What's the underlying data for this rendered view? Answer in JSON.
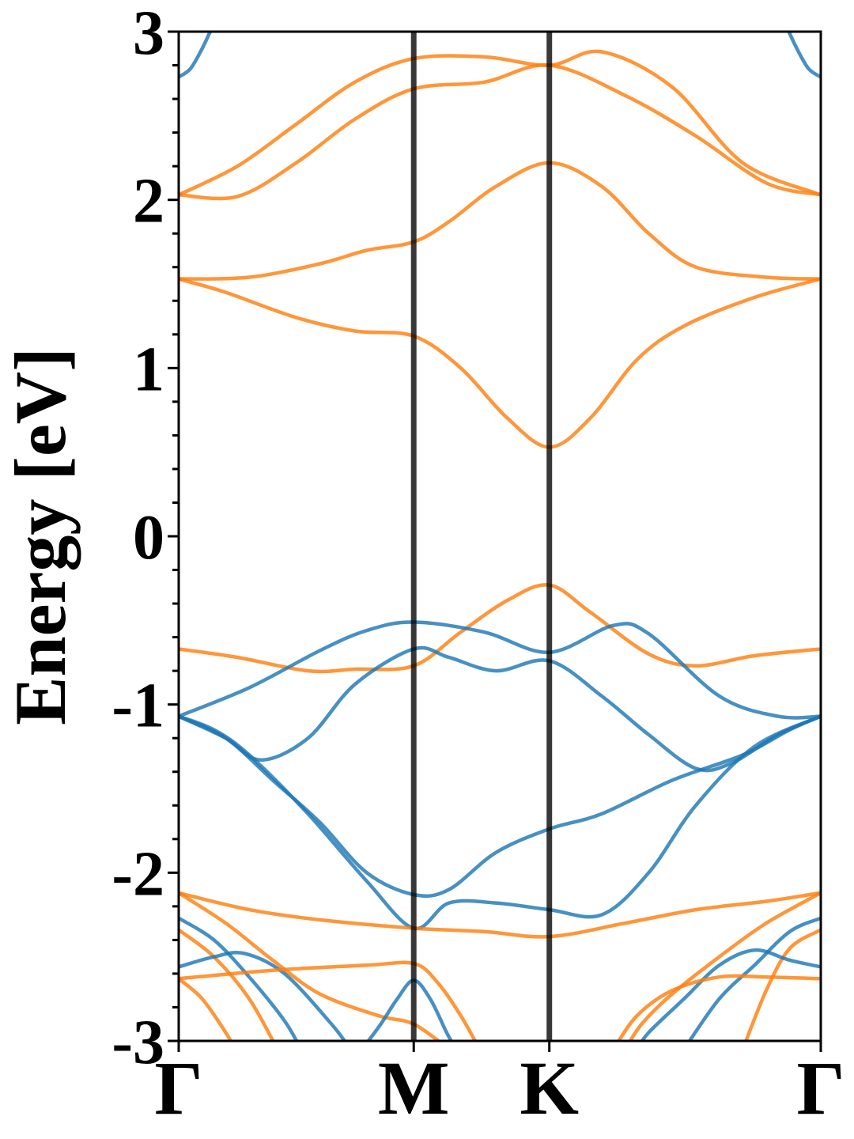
{
  "chart_data": {
    "type": "line",
    "title": "",
    "ylabel": "Energy [eV]",
    "xlabel": "",
    "ylim": [
      -3,
      3
    ],
    "grid": false,
    "legend": "none",
    "yticks": [
      "3",
      "2",
      "1",
      "0",
      "-1",
      "-2",
      "-3"
    ],
    "ytick_values": [
      3,
      2,
      1,
      0,
      -1,
      -2,
      -3
    ],
    "kpath": {
      "labels": [
        "Γ",
        "M",
        "K",
        "Γ"
      ],
      "positions": [
        0,
        1,
        1.577,
        2.732
      ]
    },
    "colors": {
      "spin_up": "#1f77b4",
      "spin_down": "#ff7f0e",
      "kline": "#000000"
    },
    "series": [
      {
        "color_key": "spin_down",
        "points": [
          [
            0,
            2.03
          ],
          [
            0.25,
            2.02
          ],
          [
            0.5,
            2.22
          ],
          [
            0.75,
            2.48
          ],
          [
            1,
            2.66
          ],
          [
            1.3,
            2.7
          ],
          [
            1.577,
            2.8
          ],
          [
            1.9,
            2.62
          ],
          [
            2.2,
            2.38
          ],
          [
            2.5,
            2.1
          ],
          [
            2.732,
            2.03
          ]
        ]
      },
      {
        "color_key": "spin_down",
        "points": [
          [
            0,
            2.03
          ],
          [
            0.25,
            2.2
          ],
          [
            0.5,
            2.45
          ],
          [
            0.75,
            2.7
          ],
          [
            1,
            2.84
          ],
          [
            1.3,
            2.85
          ],
          [
            1.577,
            2.8
          ],
          [
            1.8,
            2.88
          ],
          [
            2.1,
            2.67
          ],
          [
            2.4,
            2.22
          ],
          [
            2.732,
            2.03
          ]
        ]
      },
      {
        "color_key": "spin_down",
        "points": [
          [
            0,
            1.53
          ],
          [
            0.3,
            1.54
          ],
          [
            0.6,
            1.62
          ],
          [
            0.8,
            1.7
          ],
          [
            1,
            1.75
          ],
          [
            1.15,
            1.87
          ],
          [
            1.35,
            2.08
          ],
          [
            1.577,
            2.22
          ],
          [
            1.8,
            2.08
          ],
          [
            2.0,
            1.8
          ],
          [
            2.2,
            1.6
          ],
          [
            2.5,
            1.54
          ],
          [
            2.732,
            1.53
          ]
        ]
      },
      {
        "color_key": "spin_down",
        "points": [
          [
            0,
            1.53
          ],
          [
            0.2,
            1.45
          ],
          [
            0.5,
            1.3
          ],
          [
            0.75,
            1.22
          ],
          [
            1,
            1.19
          ],
          [
            1.2,
            1.0
          ],
          [
            1.4,
            0.7
          ],
          [
            1.577,
            0.53
          ],
          [
            1.75,
            0.7
          ],
          [
            1.95,
            1.05
          ],
          [
            2.15,
            1.25
          ],
          [
            2.45,
            1.42
          ],
          [
            2.732,
            1.53
          ]
        ]
      },
      {
        "color_key": "spin_down",
        "points": [
          [
            0,
            -0.67
          ],
          [
            0.25,
            -0.72
          ],
          [
            0.55,
            -0.8
          ],
          [
            0.75,
            -0.79
          ],
          [
            1,
            -0.77
          ],
          [
            1.2,
            -0.57
          ],
          [
            1.4,
            -0.38
          ],
          [
            1.577,
            -0.29
          ],
          [
            1.75,
            -0.45
          ],
          [
            2.0,
            -0.7
          ],
          [
            2.2,
            -0.77
          ],
          [
            2.45,
            -0.71
          ],
          [
            2.732,
            -0.67
          ]
        ]
      },
      {
        "color_key": "spin_up",
        "points": [
          [
            0,
            -1.07
          ],
          [
            0.3,
            -0.9
          ],
          [
            0.6,
            -0.68
          ],
          [
            0.8,
            -0.56
          ],
          [
            1,
            -0.51
          ],
          [
            1.3,
            -0.57
          ],
          [
            1.577,
            -0.69
          ],
          [
            1.85,
            -0.53
          ],
          [
            2.0,
            -0.58
          ],
          [
            2.3,
            -0.95
          ],
          [
            2.55,
            -1.07
          ],
          [
            2.732,
            -1.07
          ]
        ]
      },
      {
        "color_key": "spin_up",
        "points": [
          [
            0,
            -1.07
          ],
          [
            0.2,
            -1.2
          ],
          [
            0.35,
            -1.33
          ],
          [
            0.55,
            -1.2
          ],
          [
            0.75,
            -0.88
          ],
          [
            1,
            -0.67
          ],
          [
            1.15,
            -0.72
          ],
          [
            1.35,
            -0.8
          ],
          [
            1.577,
            -0.74
          ],
          [
            1.8,
            -0.95
          ],
          [
            2.0,
            -1.18
          ],
          [
            2.2,
            -1.38
          ],
          [
            2.35,
            -1.35
          ],
          [
            2.55,
            -1.18
          ],
          [
            2.732,
            -1.07
          ]
        ]
      },
      {
        "color_key": "spin_up",
        "points": [
          [
            0,
            -1.07
          ],
          [
            0.2,
            -1.2
          ],
          [
            0.4,
            -1.45
          ],
          [
            0.6,
            -1.7
          ],
          [
            0.8,
            -2.0
          ],
          [
            1,
            -2.13
          ],
          [
            1.15,
            -2.1
          ],
          [
            1.35,
            -1.88
          ],
          [
            1.577,
            -1.74
          ],
          [
            1.8,
            -1.65
          ],
          [
            2.1,
            -1.45
          ],
          [
            2.4,
            -1.3
          ],
          [
            2.6,
            -1.15
          ],
          [
            2.732,
            -1.07
          ]
        ]
      },
      {
        "color_key": "spin_up",
        "points": [
          [
            0,
            -1.07
          ],
          [
            0.15,
            -1.15
          ],
          [
            0.3,
            -1.3
          ],
          [
            0.55,
            -1.65
          ],
          [
            0.8,
            -2.05
          ],
          [
            1,
            -2.33
          ],
          [
            1.15,
            -2.18
          ],
          [
            1.35,
            -2.18
          ],
          [
            1.577,
            -2.22
          ],
          [
            1.8,
            -2.25
          ],
          [
            2.0,
            -2.0
          ],
          [
            2.2,
            -1.6
          ],
          [
            2.45,
            -1.25
          ],
          [
            2.732,
            -1.07
          ]
        ]
      },
      {
        "color_key": "spin_down",
        "points": [
          [
            0,
            -2.12
          ],
          [
            0.3,
            -2.22
          ],
          [
            0.6,
            -2.28
          ],
          [
            1,
            -2.33
          ],
          [
            1.3,
            -2.35
          ],
          [
            1.577,
            -2.38
          ],
          [
            1.9,
            -2.3
          ],
          [
            2.2,
            -2.22
          ],
          [
            2.5,
            -2.17
          ],
          [
            2.732,
            -2.12
          ]
        ]
      },
      {
        "color_key": "spin_down",
        "points": [
          [
            0,
            -2.12
          ],
          [
            0.2,
            -2.3
          ],
          [
            0.4,
            -2.52
          ],
          [
            0.6,
            -2.72
          ],
          [
            0.85,
            -2.85
          ],
          [
            1,
            -2.9
          ],
          [
            1.15,
            -3.05
          ]
        ]
      },
      {
        "color_key": "spin_up",
        "points": [
          [
            0,
            -2.27
          ],
          [
            0.15,
            -2.4
          ],
          [
            0.3,
            -2.62
          ],
          [
            0.45,
            -2.88
          ],
          [
            0.52,
            -3.05
          ]
        ]
      },
      {
        "color_key": "spin_down",
        "points": [
          [
            0,
            -2.34
          ],
          [
            0.15,
            -2.5
          ],
          [
            0.3,
            -2.75
          ],
          [
            0.42,
            -3.05
          ]
        ]
      },
      {
        "color_key": "spin_up",
        "points": [
          [
            0,
            -2.56
          ],
          [
            0.15,
            -2.5
          ],
          [
            0.28,
            -2.48
          ],
          [
            0.45,
            -2.6
          ],
          [
            0.65,
            -2.9
          ],
          [
            0.73,
            -3.05
          ]
        ]
      },
      {
        "color_key": "spin_down",
        "points": [
          [
            0,
            -2.63
          ],
          [
            0.4,
            -2.58
          ],
          [
            0.8,
            -2.55
          ],
          [
            1,
            -2.54
          ],
          [
            1.1,
            -2.65
          ],
          [
            1.2,
            -2.85
          ],
          [
            1.28,
            -3.05
          ]
        ]
      },
      {
        "color_key": "spin_down",
        "points": [
          [
            0,
            -2.63
          ],
          [
            0.1,
            -2.75
          ],
          [
            0.2,
            -2.95
          ],
          [
            0.24,
            -3.05
          ]
        ]
      },
      {
        "color_key": "spin_up",
        "points": [
          [
            0.78,
            -3.05
          ],
          [
            0.86,
            -2.9
          ],
          [
            0.93,
            -2.75
          ],
          [
            1,
            -2.64
          ],
          [
            1.07,
            -2.75
          ],
          [
            1.14,
            -2.95
          ],
          [
            1.18,
            -3.05
          ]
        ]
      },
      {
        "color_key": "spin_down",
        "points": [
          [
            2.732,
            -2.12
          ],
          [
            2.5,
            -2.3
          ],
          [
            2.3,
            -2.5
          ],
          [
            2.1,
            -2.72
          ],
          [
            1.97,
            -2.9
          ],
          [
            1.9,
            -3.05
          ]
        ]
      },
      {
        "color_key": "spin_up",
        "points": [
          [
            2.732,
            -2.27
          ],
          [
            2.6,
            -2.35
          ],
          [
            2.45,
            -2.55
          ],
          [
            2.3,
            -2.75
          ],
          [
            2.15,
            -3.05
          ]
        ]
      },
      {
        "color_key": "spin_down",
        "points": [
          [
            2.732,
            -2.34
          ],
          [
            2.6,
            -2.45
          ],
          [
            2.5,
            -2.7
          ],
          [
            2.4,
            -3.05
          ]
        ]
      },
      {
        "color_key": "spin_up",
        "points": [
          [
            2.732,
            -2.56
          ],
          [
            2.6,
            -2.52
          ],
          [
            2.45,
            -2.46
          ],
          [
            2.3,
            -2.55
          ],
          [
            2.15,
            -2.75
          ],
          [
            2.0,
            -2.95
          ],
          [
            1.95,
            -3.05
          ]
        ]
      },
      {
        "color_key": "spin_down",
        "points": [
          [
            2.732,
            -2.63
          ],
          [
            2.5,
            -2.62
          ],
          [
            2.3,
            -2.62
          ],
          [
            2.1,
            -2.7
          ],
          [
            1.95,
            -2.85
          ],
          [
            1.85,
            -3.05
          ]
        ]
      },
      {
        "color_key": "spin_up",
        "points": [
          [
            0,
            2.73
          ],
          [
            0.05,
            2.78
          ],
          [
            0.1,
            2.9
          ],
          [
            0.15,
            3.05
          ]
        ]
      },
      {
        "color_key": "spin_up",
        "points": [
          [
            2.732,
            2.73
          ],
          [
            2.68,
            2.78
          ],
          [
            2.63,
            2.9
          ],
          [
            2.58,
            3.05
          ]
        ]
      }
    ]
  }
}
